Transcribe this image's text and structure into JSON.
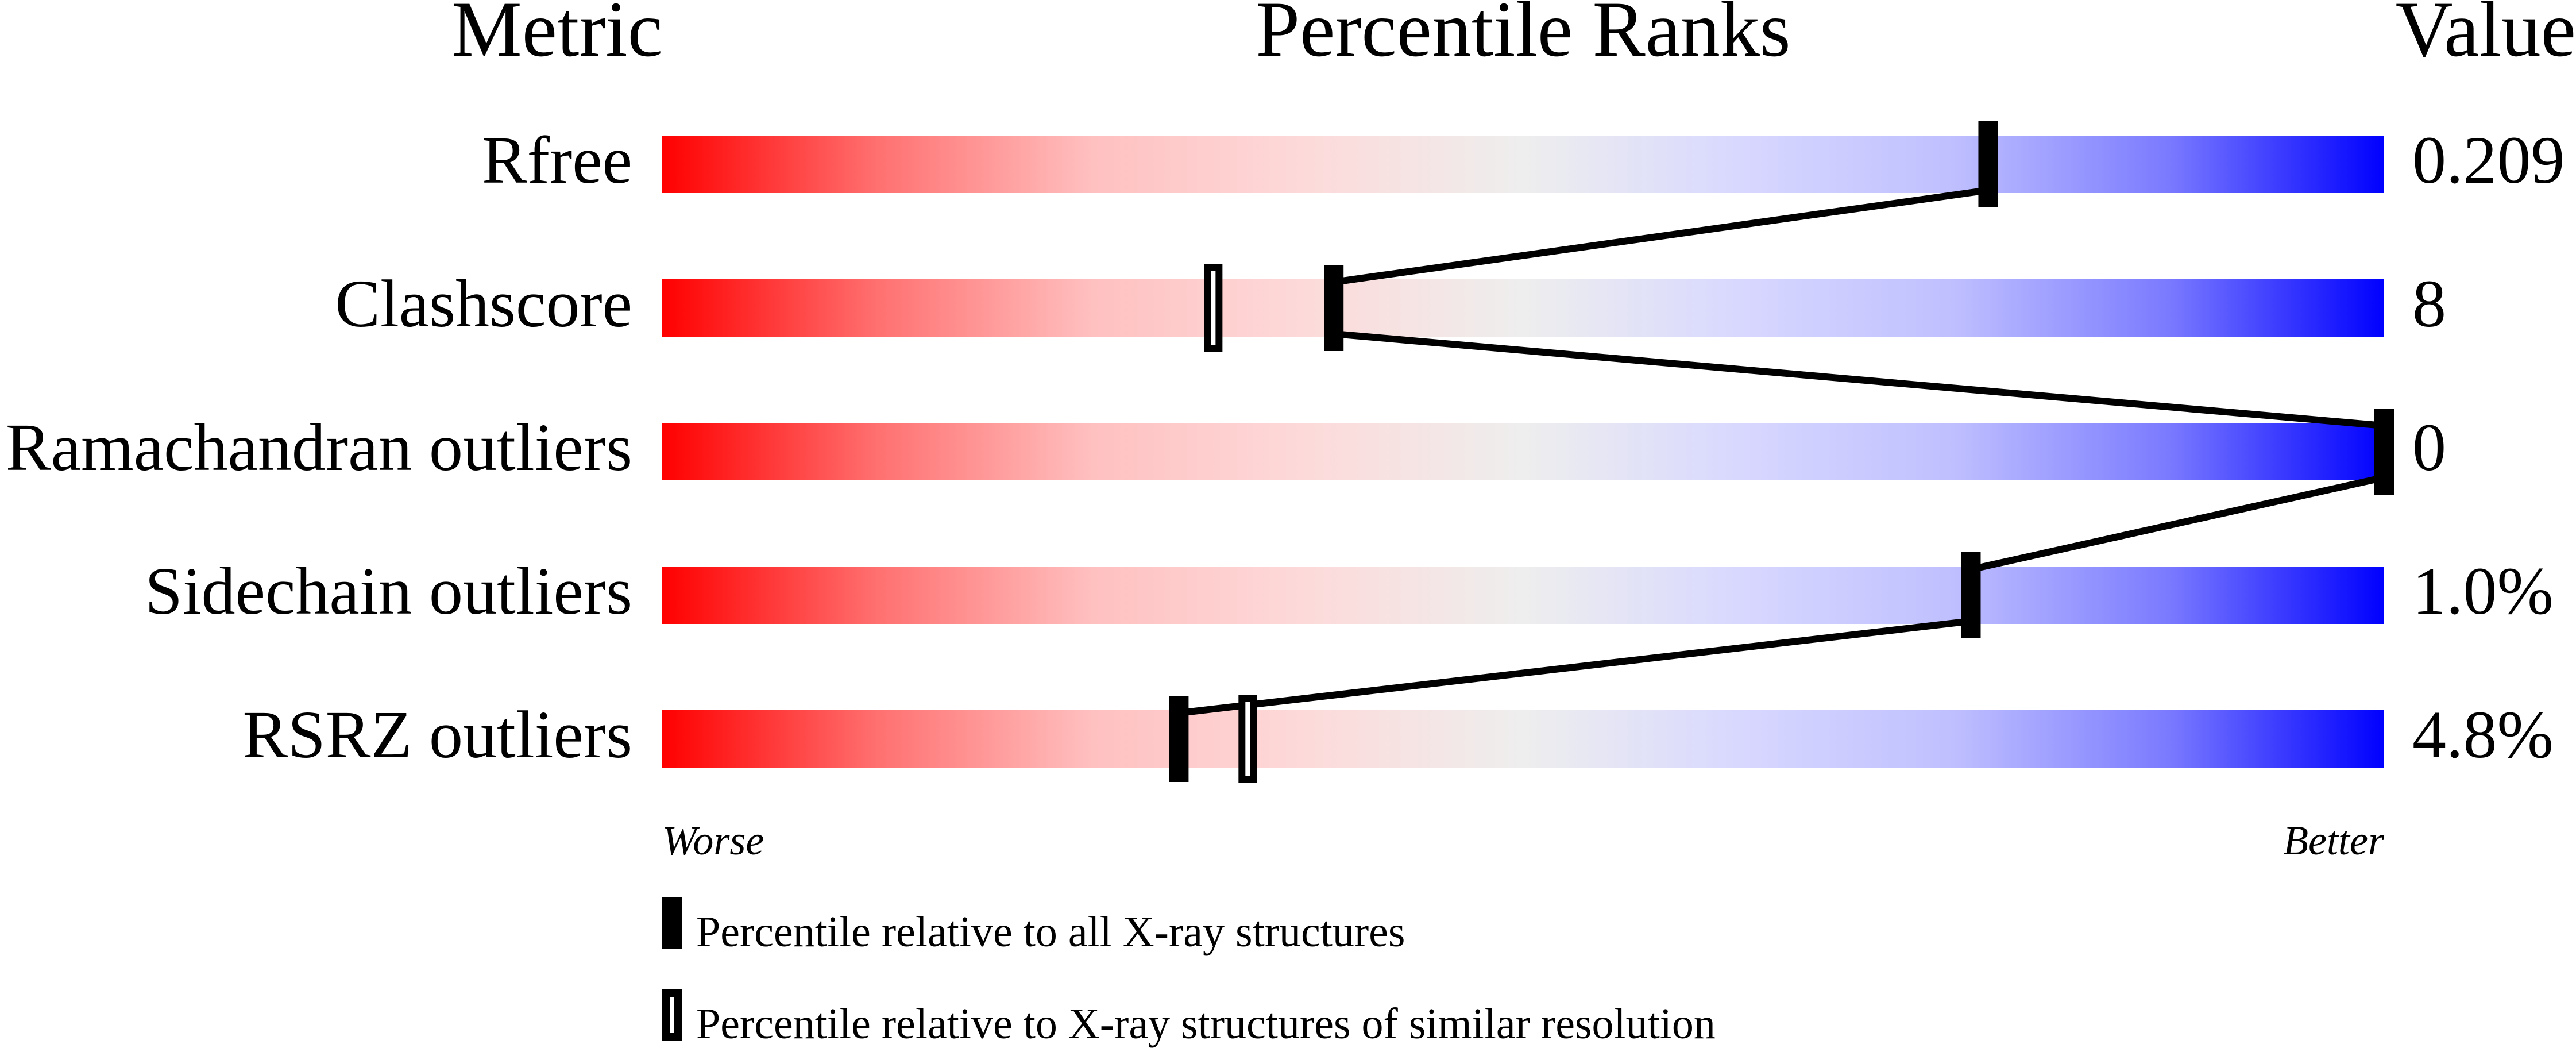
{
  "chart_data": {
    "type": "bar",
    "headers": {
      "metric": "Metric",
      "ranks": "Percentile Ranks",
      "value": "Value"
    },
    "xlim": [
      0,
      100
    ],
    "axis_labels": {
      "worse": "Worse",
      "better": "Better"
    },
    "rows": [
      {
        "metric": "Rfree",
        "value": "0.209",
        "percentile_all": 77,
        "percentile_similar": null
      },
      {
        "metric": "Clashscore",
        "value": "8",
        "percentile_all": 39,
        "percentile_similar": 32
      },
      {
        "metric": "Ramachandran outliers",
        "value": "0",
        "percentile_all": 100,
        "percentile_similar": null
      },
      {
        "metric": "Sidechain outliers",
        "value": "1.0%",
        "percentile_all": 76,
        "percentile_similar": null
      },
      {
        "metric": "RSRZ outliers",
        "value": "4.8%",
        "percentile_all": 30,
        "percentile_similar": 34
      }
    ],
    "legend": [
      {
        "marker": "filled",
        "label": "Percentile relative to all X-ray structures"
      },
      {
        "marker": "hollow",
        "label": "Percentile relative to X-ray structures of similar resolution"
      }
    ],
    "gradient_colors": [
      "#ff0000",
      "#ff7070",
      "#ffc0c0",
      "#fddada",
      "#eeeeee",
      "#d8d8ff",
      "#bfbfff",
      "#7a7aff",
      "#0000ff"
    ]
  }
}
